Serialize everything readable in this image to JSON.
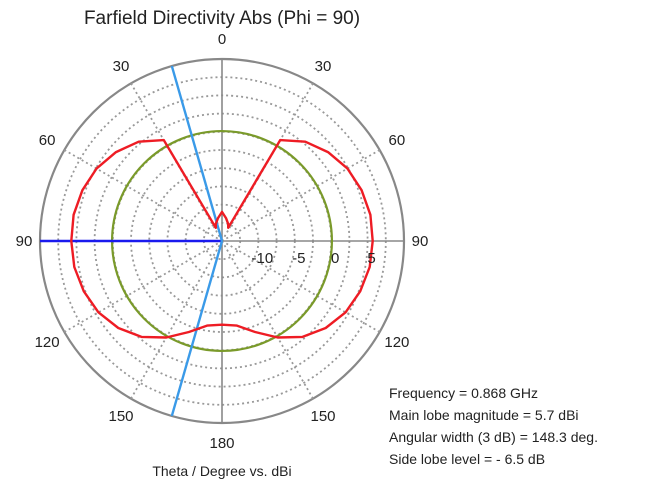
{
  "chart_data": {
    "type": "polar-line",
    "title": "Farfield Directivity Abs (Phi = 90)",
    "xlabel": "Theta / Degree vs. dBi",
    "angle_unit": "degree",
    "radial_unit": "dBi",
    "radial_range": [
      -15,
      10
    ],
    "radial_ticks": [
      "-10",
      "-5",
      "0",
      "5"
    ],
    "radial_tick_values": [
      -10,
      -5,
      0,
      5
    ],
    "angle_labels": [
      {
        "deg": 0,
        "text": "0"
      },
      {
        "deg": 30,
        "text": "30"
      },
      {
        "deg": -30,
        "text": "30"
      },
      {
        "deg": 60,
        "text": "60"
      },
      {
        "deg": -60,
        "text": "60"
      },
      {
        "deg": 90,
        "text": "90"
      },
      {
        "deg": -90,
        "text": "90"
      },
      {
        "deg": 120,
        "text": "120"
      },
      {
        "deg": -120,
        "text": "120"
      },
      {
        "deg": 150,
        "text": "150"
      },
      {
        "deg": -150,
        "text": "150"
      },
      {
        "deg": 180,
        "text": "180"
      }
    ],
    "grid": true,
    "series": [
      {
        "color": "#ee1c24",
        "points": [
          {
            "theta": 0,
            "dbi": -11.0
          },
          {
            "theta": 10,
            "dbi": -11.8
          },
          {
            "theta": 20,
            "dbi": -12.5
          },
          {
            "theta": 25,
            "dbi": -13.0
          },
          {
            "theta": 30,
            "dbi": 1.0
          },
          {
            "theta": 40,
            "dbi": 2.8
          },
          {
            "theta": 50,
            "dbi": 4.0
          },
          {
            "theta": 60,
            "dbi": 4.9
          },
          {
            "theta": 70,
            "dbi": 5.4
          },
          {
            "theta": 80,
            "dbi": 5.7
          },
          {
            "theta": 90,
            "dbi": 5.7
          },
          {
            "theta": 100,
            "dbi": 5.6
          },
          {
            "theta": 110,
            "dbi": 5.2
          },
          {
            "theta": 120,
            "dbi": 4.6
          },
          {
            "theta": 130,
            "dbi": 3.6
          },
          {
            "theta": 140,
            "dbi": 2.2
          },
          {
            "theta": 150,
            "dbi": 0.3
          },
          {
            "theta": 160,
            "dbi": -1.7
          },
          {
            "theta": 170,
            "dbi": -3.2
          },
          {
            "theta": 180,
            "dbi": -3.5
          },
          {
            "theta": -170,
            "dbi": -3.2
          },
          {
            "theta": -160,
            "dbi": -1.7
          },
          {
            "theta": -150,
            "dbi": 0.3
          },
          {
            "theta": -140,
            "dbi": 2.2
          },
          {
            "theta": -130,
            "dbi": 3.6
          },
          {
            "theta": -120,
            "dbi": 4.6
          },
          {
            "theta": -110,
            "dbi": 5.2
          },
          {
            "theta": -100,
            "dbi": 5.6
          },
          {
            "theta": -90,
            "dbi": 5.7
          },
          {
            "theta": -80,
            "dbi": 5.7
          },
          {
            "theta": -70,
            "dbi": 5.4
          },
          {
            "theta": -60,
            "dbi": 4.9
          },
          {
            "theta": -50,
            "dbi": 4.0
          },
          {
            "theta": -40,
            "dbi": 2.8
          },
          {
            "theta": -30,
            "dbi": 1.0
          },
          {
            "theta": -25,
            "dbi": -13.0
          },
          {
            "theta": -20,
            "dbi": -12.5
          },
          {
            "theta": -10,
            "dbi": -11.8
          }
        ]
      }
    ],
    "reference_circle": {
      "dbi": 0.1,
      "color": "#7a9a2a"
    },
    "markers": [
      {
        "color": "#1a1aee",
        "theta": -90,
        "from_dbi": -15,
        "to_dbi": 10
      },
      {
        "color": "#3a9ae8",
        "theta": -16,
        "from_dbi": -15,
        "to_dbi": 10
      },
      {
        "color": "#3a9ae8",
        "theta": -164,
        "from_dbi": -15,
        "to_dbi": 10
      }
    ]
  },
  "info": {
    "frequency": "Frequency = 0.868 GHz",
    "main_lobe": "Main lobe magnitude = 5.7 dBi",
    "angular_width": "Angular width (3 dB) = 148.3 deg.",
    "side_lobe": "Side lobe level = - 6.5 dB"
  },
  "colors": {
    "pattern": "#ee1c24",
    "reference": "#7a9a2a",
    "main_marker": "#1a1aee",
    "width_marker": "#3a9ae8",
    "grid_solid": "#888888",
    "grid_dotted": "#999999"
  }
}
